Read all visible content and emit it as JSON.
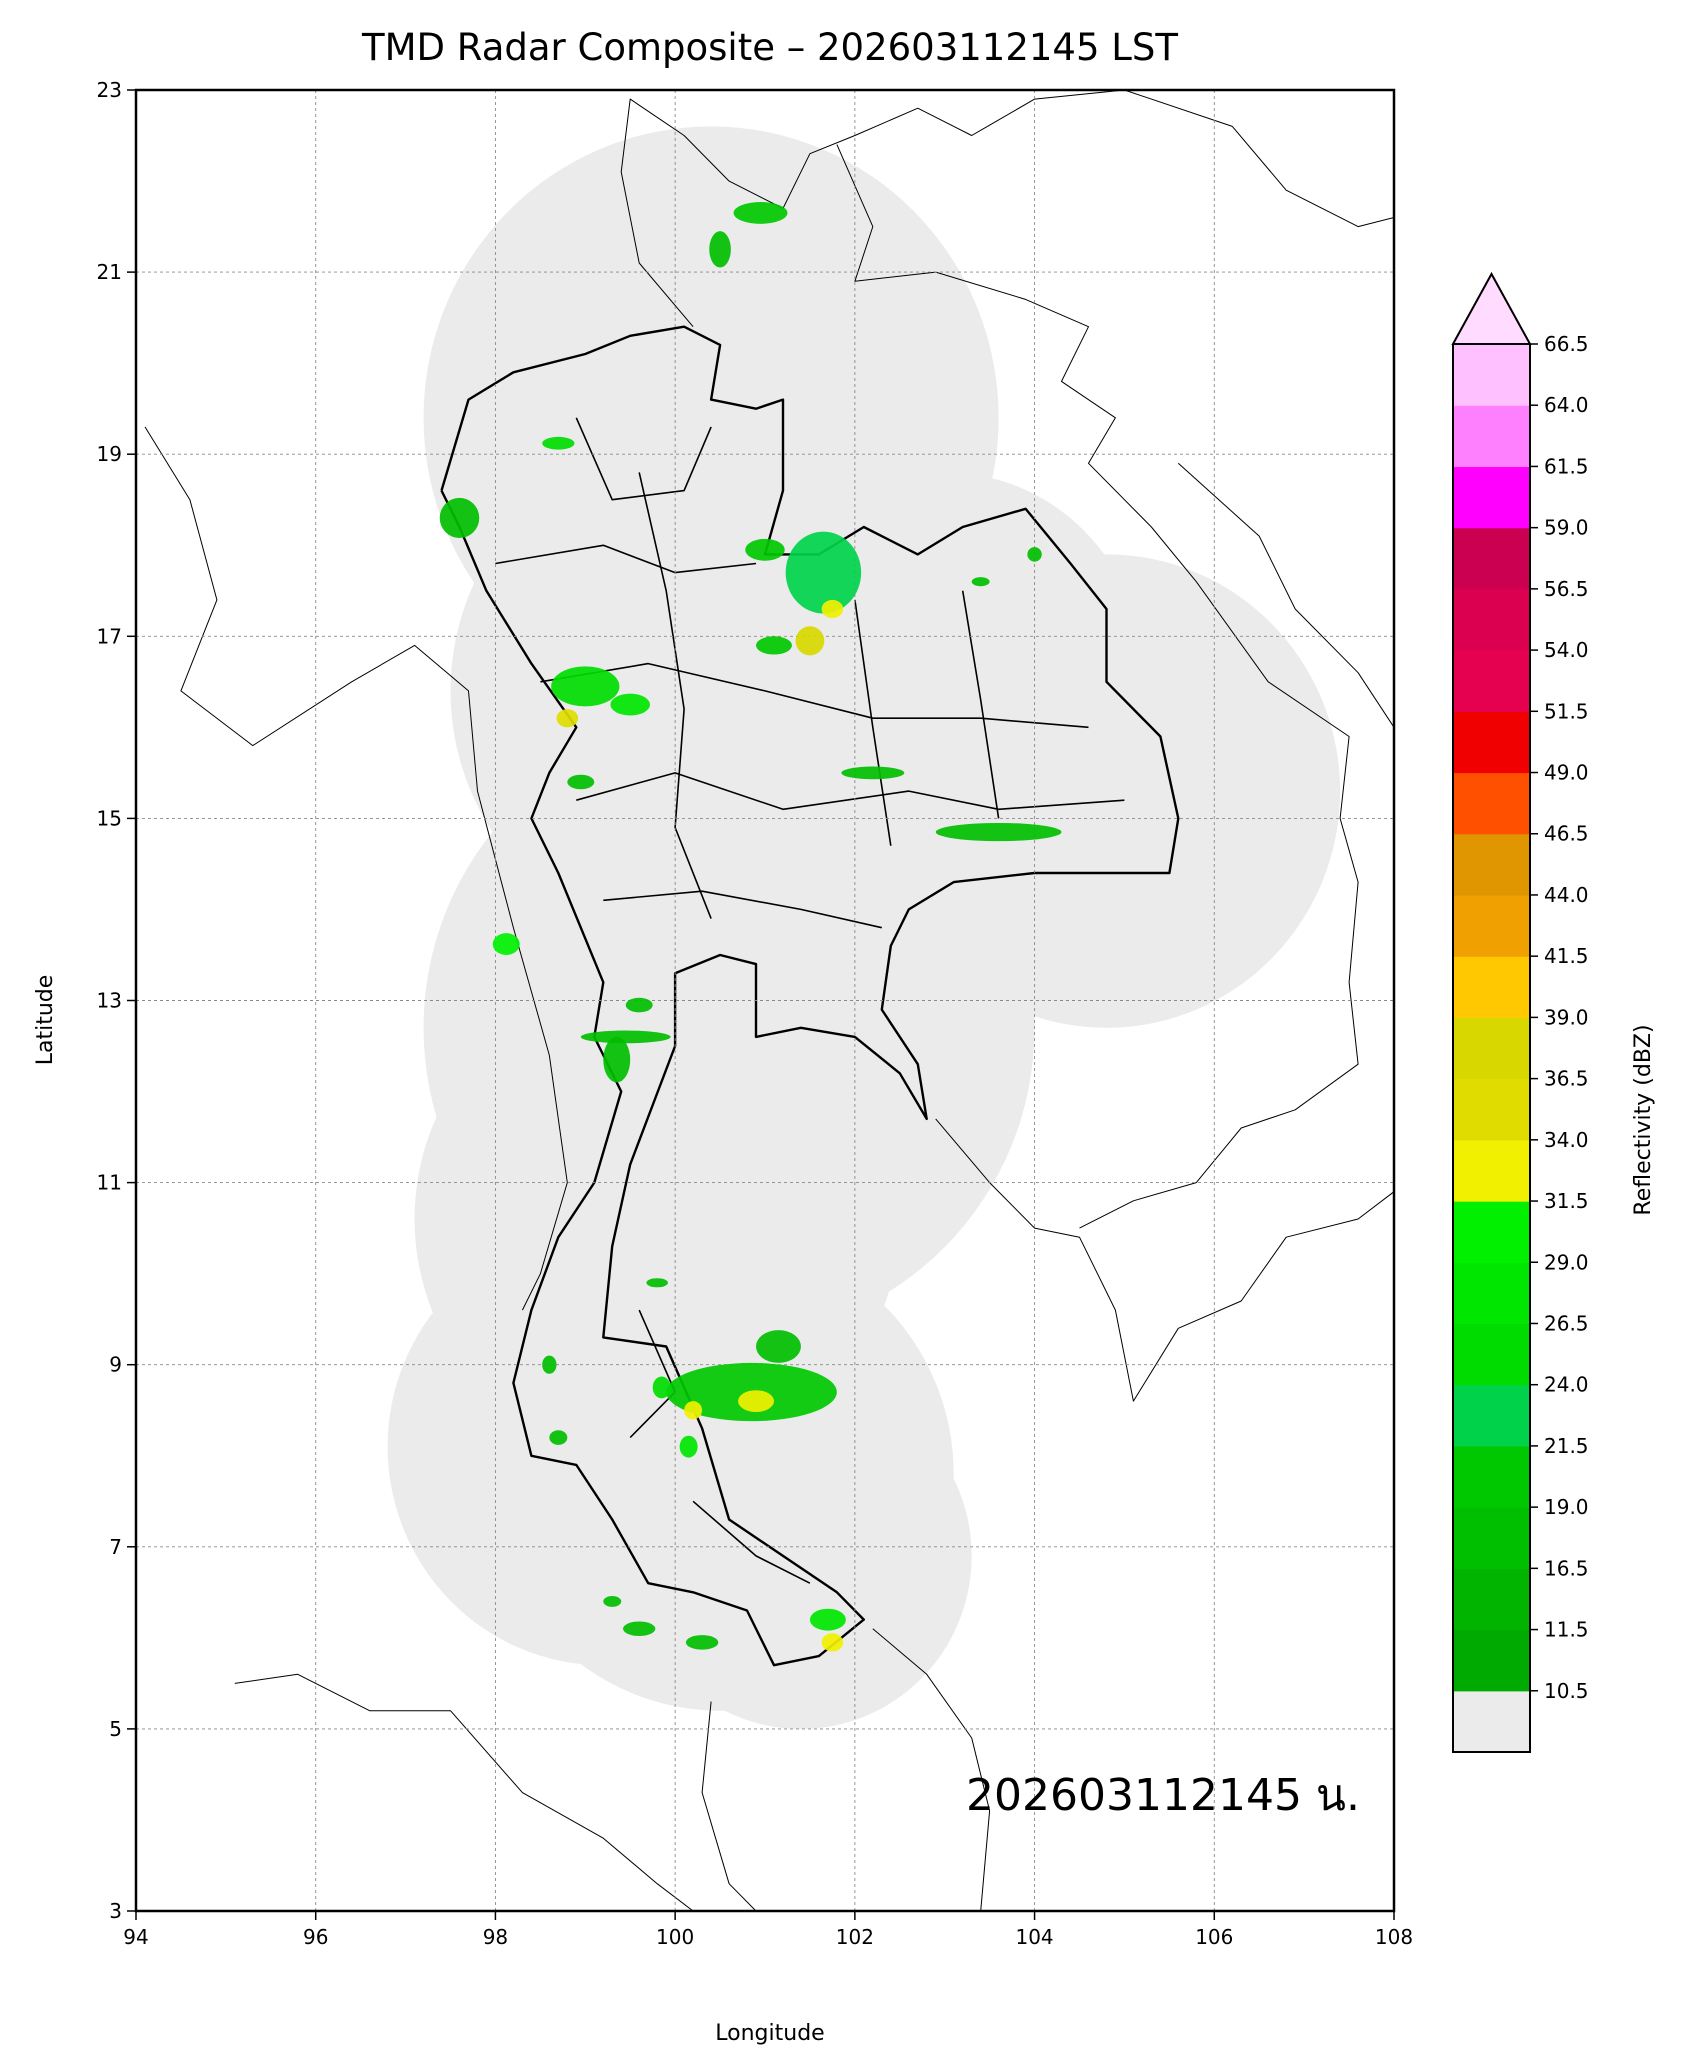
{
  "title": "TMD Radar Composite – 202603112145 LST",
  "timestamp_label": "202603112145 น.",
  "axes": {
    "xlabel": "Longitude",
    "ylabel": "Latitude",
    "xlim": [
      94,
      108
    ],
    "ylim": [
      3,
      23
    ],
    "xticks": [
      "94",
      "96",
      "98",
      "100",
      "102",
      "104",
      "106",
      "108"
    ],
    "yticks": [
      "3",
      "5",
      "7",
      "9",
      "11",
      "13",
      "15",
      "17",
      "19",
      "21",
      "23"
    ],
    "grid": true
  },
  "colorbar": {
    "label": "Reflectivity (dBZ)",
    "extend": "max",
    "tick_labels": [
      "10.5",
      "11.5",
      "16.5",
      "19.0",
      "21.5",
      "24.0",
      "26.5",
      "29.0",
      "31.5",
      "34.0",
      "36.5",
      "39.0",
      "41.5",
      "44.0",
      "46.5",
      "49.0",
      "51.5",
      "54.0",
      "56.5",
      "59.0",
      "61.5",
      "64.0",
      "66.5"
    ],
    "colors": [
      "#ebebeb",
      "#00aa00",
      "#00b400",
      "#00be00",
      "#00c800",
      "#00d24a",
      "#00dc00",
      "#00e600",
      "#00f000",
      "#f0f000",
      "#e0dc00",
      "#d8d800",
      "#ffc800",
      "#f0a000",
      "#e09600",
      "#ff5000",
      "#f00000",
      "#e60050",
      "#dc0050",
      "#cc0050",
      "#ff00ff",
      "#ff80ff",
      "#ffc0ff"
    ],
    "extend_color": "#ffdcff"
  },
  "chart_data": {
    "type": "heatmap",
    "title": "TMD Radar Composite – 202603112145 LST",
    "xlabel": "Longitude",
    "ylabel": "Latitude",
    "xlim": [
      94,
      108
    ],
    "ylim": [
      3,
      23
    ],
    "radar_coverage_circles": [
      {
        "lon": 100.4,
        "lat": 19.4,
        "r_deg": 3.2
      },
      {
        "lon": 100.9,
        "lat": 20.1,
        "r_deg": 2.0
      },
      {
        "lon": 100.3,
        "lat": 16.4,
        "r_deg": 2.8
      },
      {
        "lon": 103.0,
        "lat": 16.6,
        "r_deg": 2.2
      },
      {
        "lon": 104.8,
        "lat": 15.3,
        "r_deg": 2.6
      },
      {
        "lon": 100.6,
        "lat": 12.7,
        "r_deg": 3.4
      },
      {
        "lon": 99.8,
        "lat": 10.6,
        "r_deg": 2.7
      },
      {
        "lon": 99.2,
        "lat": 8.1,
        "r_deg": 2.4
      },
      {
        "lon": 100.5,
        "lat": 7.8,
        "r_deg": 2.6
      },
      {
        "lon": 101.4,
        "lat": 6.9,
        "r_deg": 1.9
      }
    ],
    "echoes": [
      {
        "lon": 100.95,
        "lat": 21.65,
        "rx": 0.3,
        "ry": 0.12,
        "dbz": 20
      },
      {
        "lon": 100.5,
        "lat": 21.25,
        "rx": 0.12,
        "ry": 0.2,
        "dbz": 17
      },
      {
        "lon": 98.7,
        "lat": 19.12,
        "rx": 0.18,
        "ry": 0.07,
        "dbz": 26
      },
      {
        "lon": 97.6,
        "lat": 18.3,
        "rx": 0.22,
        "ry": 0.22,
        "dbz": 18
      },
      {
        "lon": 101.0,
        "lat": 17.95,
        "rx": 0.22,
        "ry": 0.12,
        "dbz": 20
      },
      {
        "lon": 101.65,
        "lat": 17.7,
        "rx": 0.42,
        "ry": 0.45,
        "dbz": 22
      },
      {
        "lon": 101.75,
        "lat": 17.3,
        "rx": 0.12,
        "ry": 0.1,
        "dbz": 33
      },
      {
        "lon": 101.5,
        "lat": 16.95,
        "rx": 0.16,
        "ry": 0.16,
        "dbz": 38
      },
      {
        "lon": 101.1,
        "lat": 16.9,
        "rx": 0.2,
        "ry": 0.1,
        "dbz": 20
      },
      {
        "lon": 99.0,
        "lat": 16.45,
        "rx": 0.38,
        "ry": 0.22,
        "dbz": 24
      },
      {
        "lon": 99.5,
        "lat": 16.25,
        "rx": 0.22,
        "ry": 0.12,
        "dbz": 27
      },
      {
        "lon": 98.8,
        "lat": 16.1,
        "rx": 0.12,
        "ry": 0.1,
        "dbz": 34
      },
      {
        "lon": 98.95,
        "lat": 15.4,
        "rx": 0.15,
        "ry": 0.08,
        "dbz": 18
      },
      {
        "lon": 102.2,
        "lat": 15.5,
        "rx": 0.35,
        "ry": 0.07,
        "dbz": 18
      },
      {
        "lon": 103.6,
        "lat": 14.85,
        "rx": 0.7,
        "ry": 0.1,
        "dbz": 18
      },
      {
        "lon": 98.12,
        "lat": 13.62,
        "rx": 0.15,
        "ry": 0.12,
        "dbz": 31
      },
      {
        "lon": 99.35,
        "lat": 12.35,
        "rx": 0.15,
        "ry": 0.25,
        "dbz": 18
      },
      {
        "lon": 99.45,
        "lat": 12.6,
        "rx": 0.5,
        "ry": 0.07,
        "dbz": 18
      },
      {
        "lon": 99.6,
        "lat": 12.95,
        "rx": 0.15,
        "ry": 0.08,
        "dbz": 18
      },
      {
        "lon": 100.85,
        "lat": 8.7,
        "rx": 0.95,
        "ry": 0.32,
        "dbz": 20
      },
      {
        "lon": 100.9,
        "lat": 8.6,
        "rx": 0.2,
        "ry": 0.12,
        "dbz": 32
      },
      {
        "lon": 100.2,
        "lat": 8.5,
        "rx": 0.1,
        "ry": 0.1,
        "dbz": 33
      },
      {
        "lon": 100.15,
        "lat": 8.1,
        "rx": 0.1,
        "ry": 0.12,
        "dbz": 28
      },
      {
        "lon": 101.15,
        "lat": 9.2,
        "rx": 0.25,
        "ry": 0.18,
        "dbz": 18
      },
      {
        "lon": 99.85,
        "lat": 8.75,
        "rx": 0.1,
        "ry": 0.12,
        "dbz": 26
      },
      {
        "lon": 98.6,
        "lat": 9.0,
        "rx": 0.08,
        "ry": 0.1,
        "dbz": 18
      },
      {
        "lon": 99.6,
        "lat": 6.1,
        "rx": 0.18,
        "ry": 0.08,
        "dbz": 18
      },
      {
        "lon": 100.3,
        "lat": 5.95,
        "rx": 0.18,
        "ry": 0.08,
        "dbz": 18
      },
      {
        "lon": 101.7,
        "lat": 6.2,
        "rx": 0.2,
        "ry": 0.12,
        "dbz": 28
      },
      {
        "lon": 101.75,
        "lat": 5.95,
        "rx": 0.12,
        "ry": 0.1,
        "dbz": 33
      },
      {
        "lon": 104.0,
        "lat": 17.9,
        "rx": 0.08,
        "ry": 0.08,
        "dbz": 18
      },
      {
        "lon": 103.4,
        "lat": 17.6,
        "rx": 0.1,
        "ry": 0.05,
        "dbz": 18
      },
      {
        "lon": 99.8,
        "lat": 9.9,
        "rx": 0.12,
        "ry": 0.05,
        "dbz": 18
      },
      {
        "lon": 98.7,
        "lat": 8.2,
        "rx": 0.1,
        "ry": 0.08,
        "dbz": 18
      },
      {
        "lon": 99.3,
        "lat": 6.4,
        "rx": 0.1,
        "ry": 0.06,
        "dbz": 18
      }
    ]
  }
}
